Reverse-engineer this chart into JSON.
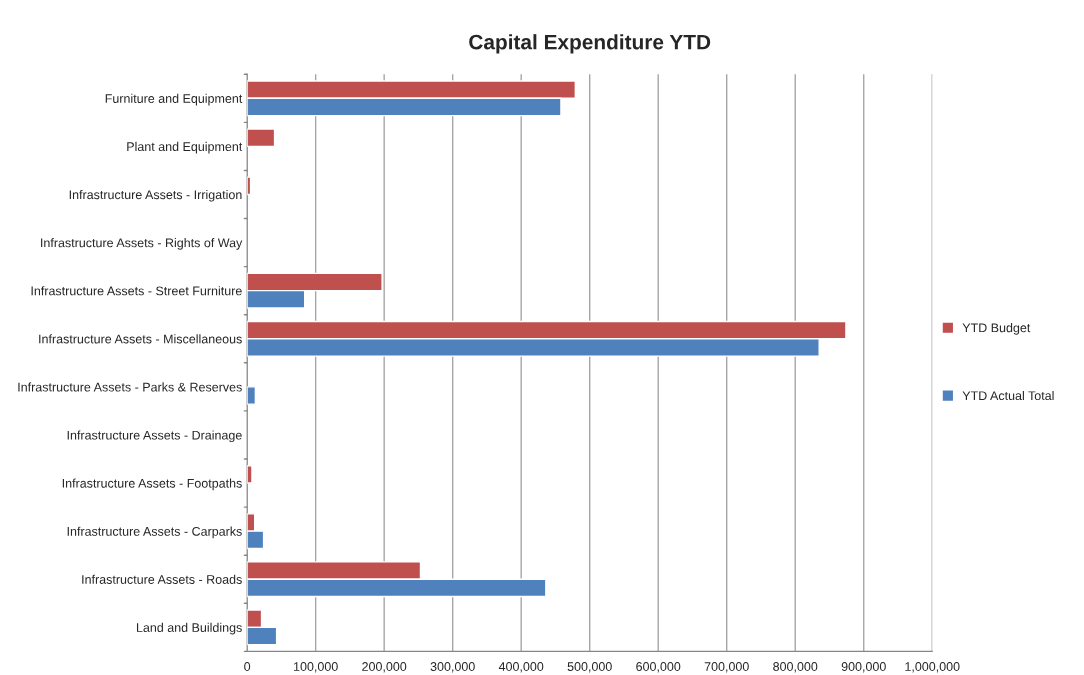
{
  "chart_data": {
    "type": "bar",
    "orientation": "horizontal",
    "title": "Capital Expenditure YTD",
    "categories": [
      "Furniture and Equipment",
      "Plant and Equipment",
      "Infrastructure Assets - Irrigation",
      "Infrastructure Assets - Rights of Way",
      "Infrastructure Assets - Street Furniture",
      "Infrastructure Assets - Miscellaneous",
      "Infrastructure Assets - Parks & Reserves",
      "Infrastructure Assets - Drainage",
      "Infrastructure Assets - Footpaths",
      "Infrastructure Assets - Carparks",
      "Infrastructure Assets - Roads",
      "Land and Buildings"
    ],
    "series": [
      {
        "name": "YTD Budget",
        "color": "#c0504d",
        "values": [
          479000,
          40000,
          5000,
          null,
          197000,
          874000,
          null,
          null,
          7000,
          11000,
          253000,
          21000
        ]
      },
      {
        "name": "YTD Actual Total",
        "color": "#4f81bd",
        "values": [
          458000,
          null,
          null,
          null,
          84000,
          835000,
          12000,
          null,
          null,
          24000,
          436000,
          43000
        ]
      }
    ],
    "xlim": [
      0,
      1000000
    ],
    "xticks": [
      0,
      {
        "value": 100000,
        "label": "100,000"
      },
      {
        "value": 200000,
        "label": "200,000"
      },
      {
        "value": 300000,
        "label": "300,000"
      },
      {
        "value": 400000,
        "label": "400,000"
      },
      {
        "value": 500000,
        "label": "500,000"
      },
      {
        "value": 600000,
        "label": "600,000"
      },
      {
        "value": 700000,
        "label": "700,000"
      },
      {
        "value": 800000,
        "label": "800,000"
      },
      {
        "value": 900000,
        "label": "900,000"
      },
      {
        "value": 1000000,
        "label": "1,000,000"
      }
    ],
    "grid": "x",
    "legend": "right"
  }
}
